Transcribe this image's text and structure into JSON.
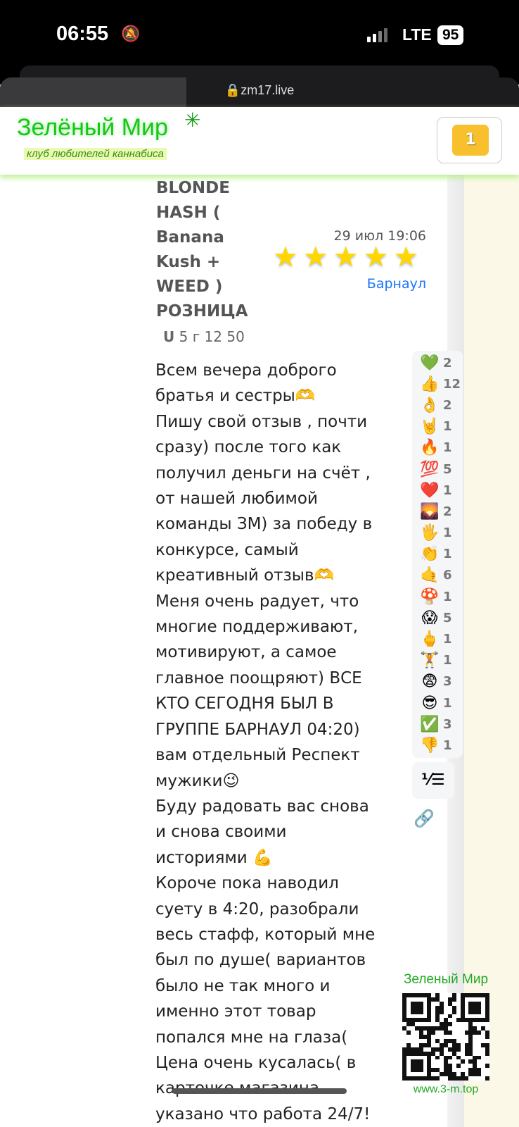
{
  "status_bar": {
    "time": "06:55",
    "network": "LTE",
    "battery": "95"
  },
  "browser": {
    "url": "zm17.live"
  },
  "header": {
    "logo_title": "Зелёный Мир",
    "logo_subtitle": "клуб любителей каннабиса",
    "cart_count": "1"
  },
  "review": {
    "title": "BLONDE HASH ( Banana Kush + WEED ) РОЗНИЦА",
    "weight": "5 г 12 50",
    "date": "29 июл 19:06",
    "rating": 5,
    "city": "Барнаул",
    "body_lines": [
      "Всем вечера доброго",
      "братья и сестры🫶",
      "Пишу свой отзыв , почти",
      "сразу) после того как",
      "получил деньги на счёт ,",
      "от нашей любимой",
      "команды ЗМ) за победу в",
      "конкурсе, самый",
      "креативный отзыв🫶",
      "Меня очень радует, что",
      "многие поддерживают,",
      "мотивируют, а самое",
      "главное поощряют) ВСЕ",
      "КТО СЕГОДНЯ БЫЛ В",
      "ГРУППЕ БАРНАУЛ 04:20)",
      "вам отдельный Респект",
      "мужики😉",
      "Буду радовать вас снова",
      "и снова своими",
      "историями 💪",
      "Короче пока наводил",
      "суету в 4:20, разобрали",
      "весь стафф, который мне",
      "был по душе( вариантов",
      "было не так много и",
      "именно этот товар",
      "попался мне на глаза(",
      "Цена очень кусалась( в",
      "карточке магазина",
      "указано что работа 24/7!"
    ]
  },
  "reactions": [
    {
      "emoji": "💚",
      "count": "2"
    },
    {
      "emoji": "👍",
      "count": "12"
    },
    {
      "emoji": "👌",
      "count": "2"
    },
    {
      "emoji": "🤘",
      "count": "1"
    },
    {
      "emoji": "🔥",
      "count": "1"
    },
    {
      "emoji": "💯",
      "count": "5"
    },
    {
      "emoji": "❤️",
      "count": "1"
    },
    {
      "emoji": "🌄",
      "count": "2"
    },
    {
      "emoji": "🖐",
      "count": "1"
    },
    {
      "emoji": "👏",
      "count": "1"
    },
    {
      "emoji": "🤙",
      "count": "6"
    },
    {
      "emoji": "🍄",
      "count": "1"
    },
    {
      "emoji": "😱",
      "count": "5"
    },
    {
      "emoji": "🖕",
      "count": "1"
    },
    {
      "emoji": "🏋",
      "count": "1"
    },
    {
      "emoji": "😨",
      "count": "3"
    },
    {
      "emoji": "😎",
      "count": "1"
    },
    {
      "emoji": "✅",
      "count": "3"
    },
    {
      "emoji": "👎",
      "count": "1"
    }
  ],
  "watermark": {
    "title": "Зеленый Мир",
    "url": "www.3-m.top"
  },
  "colors": {
    "accent_green": "#14c814",
    "star": "#ffd700",
    "link": "#1a75ff",
    "cart_badge": "#f8c02c"
  }
}
